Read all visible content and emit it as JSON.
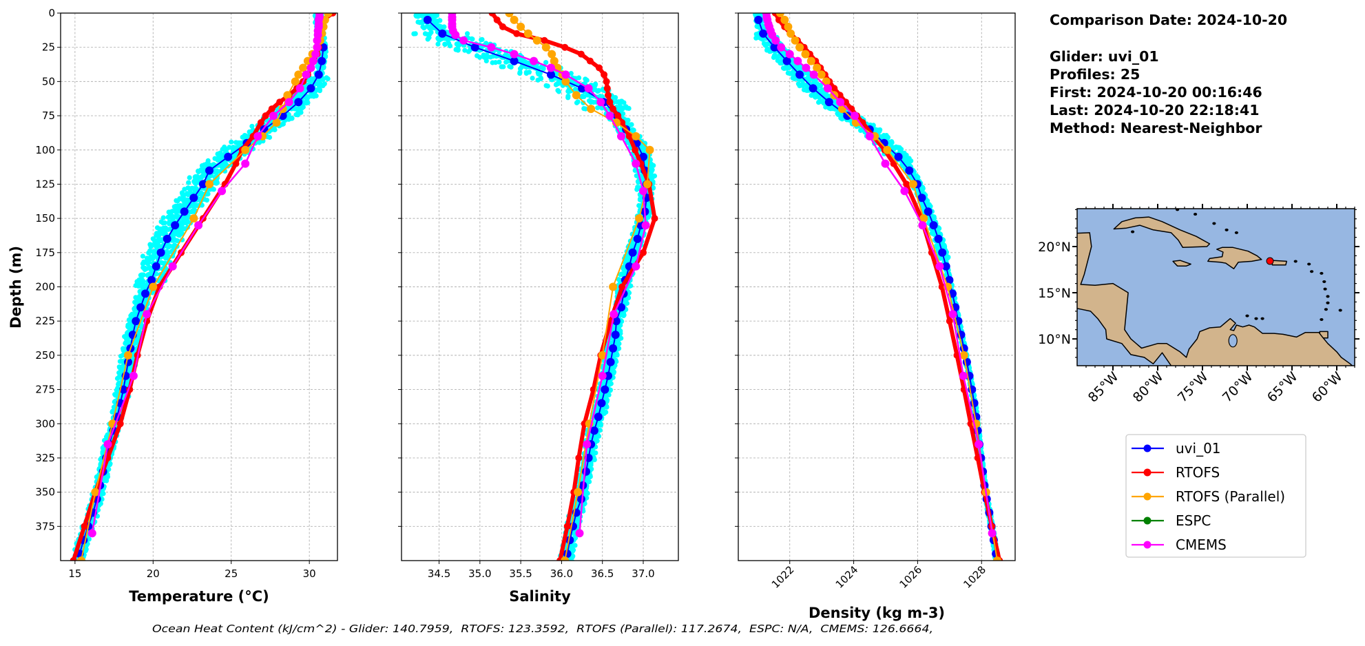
{
  "info": {
    "comparison_date": "Comparison Date: 2024-10-20",
    "glider": "Glider: uvi_01",
    "profiles": "Profiles: 25",
    "first": "First: 2024-10-20 00:16:46",
    "last": "Last: 2024-10-20 22:18:41",
    "method": "Method: Nearest-Neighbor"
  },
  "footer": "Ocean Heat Content (kJ/cm^2) - Glider: 140.7959,  RTOFS: 123.3592,  RTOFS (Parallel): 117.2674,  ESPC: N/A,  CMEMS: 126.6664,",
  "legend": {
    "placement": "bottom-right",
    "items": [
      {
        "label": "uvi_01",
        "color": "#0000ff"
      },
      {
        "label": "RTOFS",
        "color": "#ff0000"
      },
      {
        "label": "RTOFS (Parallel)",
        "color": "#ffa500"
      },
      {
        "label": "ESPC",
        "color": "#008000"
      },
      {
        "label": "CMEMS",
        "color": "#ff00ff"
      }
    ]
  },
  "raw_profiles_color": "#00ffff",
  "map": {
    "lon_range": [
      -89,
      -58
    ],
    "lat_range": [
      7.1,
      24.1
    ],
    "xticks": [
      -85,
      -80,
      -75,
      -70,
      -65,
      -60
    ],
    "xtick_labels": [
      "85°W",
      "80°W",
      "75°W",
      "70°W",
      "65°W",
      "60°W"
    ],
    "yticks": [
      10,
      15,
      20
    ],
    "ytick_labels": [
      "10°N",
      "15°N",
      "20°N"
    ],
    "glider_location": {
      "lon": -67.46,
      "lat": 18.43
    },
    "ocean_color": "#97b7e2",
    "land_color": "#d2b48c",
    "marker_color": "#ff0000"
  },
  "chart_data": [
    {
      "type": "line",
      "xlabel": "Temperature (°C)",
      "ylabel": "Depth (m)",
      "xlim": [
        14.08,
        31.8
      ],
      "ylim": [
        400,
        0
      ],
      "grid": true,
      "xticks": [
        15,
        20,
        25,
        30
      ],
      "xtick_labels": [
        "15",
        "20",
        "25",
        "30"
      ],
      "yticks": [
        0,
        25,
        50,
        75,
        100,
        125,
        150,
        175,
        200,
        225,
        250,
        275,
        300,
        325,
        350,
        375
      ],
      "ytick_labels": [
        "0",
        "25",
        "50",
        "75",
        "100",
        "125",
        "150",
        "175",
        "200",
        "225",
        "250",
        "275",
        "300",
        "325",
        "350",
        "375"
      ],
      "series": [
        {
          "name": "uvi_01",
          "color": "#0000ff",
          "depth": [
            5,
            15,
            25,
            35,
            45,
            55,
            65,
            75,
            85,
            95,
            105,
            115,
            125,
            135,
            145,
            155,
            165,
            175,
            185,
            195,
            205,
            215,
            225,
            235,
            245,
            255,
            265,
            275,
            285,
            295,
            305,
            315,
            325,
            335,
            345,
            355,
            365,
            375,
            385,
            395
          ],
          "values": [
            30.6,
            30.7,
            30.9,
            30.8,
            30.6,
            30.1,
            29.3,
            28.3,
            27.1,
            26.0,
            24.8,
            23.6,
            23.2,
            22.6,
            22.0,
            21.4,
            20.9,
            20.5,
            20.2,
            19.9,
            19.5,
            19.2,
            18.9,
            18.7,
            18.55,
            18.4,
            18.25,
            18.1,
            17.9,
            17.7,
            17.45,
            17.2,
            17.0,
            16.8,
            16.6,
            16.4,
            16.15,
            15.85,
            15.55,
            15.3
          ]
        },
        {
          "name": "RTOFS",
          "color": "#ff0000",
          "depth": [
            0,
            5,
            10,
            15,
            20,
            25,
            30,
            35,
            40,
            45,
            50,
            55,
            60,
            65,
            70,
            75,
            80,
            90,
            100,
            110,
            125,
            150,
            175,
            200,
            225,
            250,
            275,
            300,
            325,
            350,
            375,
            400
          ],
          "values": [
            31.5,
            30.9,
            30.8,
            30.75,
            30.7,
            30.6,
            30.5,
            30.3,
            30.1,
            29.9,
            29.6,
            29.2,
            28.7,
            28.1,
            27.6,
            27.2,
            26.9,
            26.4,
            25.7,
            25.3,
            24.6,
            23.2,
            21.8,
            20.4,
            19.6,
            19.0,
            18.5,
            17.9,
            17.1,
            16.3,
            15.6,
            14.9
          ]
        },
        {
          "name": "RTOFS (Parallel)",
          "color": "#ffa500",
          "depth": [
            0,
            5,
            10,
            15,
            20,
            25,
            30,
            35,
            40,
            45,
            50,
            60,
            70,
            80,
            90,
            100,
            125,
            150,
            200,
            250,
            300,
            350,
            400
          ],
          "values": [
            31.2,
            31.0,
            30.9,
            30.8,
            30.7,
            30.5,
            30.2,
            29.9,
            29.6,
            29.3,
            29.1,
            28.6,
            28.3,
            27.9,
            27.0,
            25.9,
            23.6,
            22.6,
            20.0,
            18.4,
            17.4,
            16.3,
            15.4
          ]
        },
        {
          "name": "CMEMS",
          "color": "#ff00ff",
          "depth": [
            0,
            3,
            5,
            8,
            10,
            13,
            16,
            20,
            25,
            30,
            35,
            40,
            45,
            55,
            65,
            75,
            90,
            110,
            130,
            155,
            185,
            220,
            265,
            315,
            380
          ],
          "values": [
            30.65,
            30.65,
            30.6,
            30.6,
            30.6,
            30.55,
            30.55,
            30.5,
            30.5,
            30.4,
            30.25,
            30.1,
            29.8,
            29.4,
            28.7,
            27.7,
            26.7,
            25.9,
            24.4,
            22.9,
            21.25,
            19.6,
            18.75,
            17.1,
            16.1
          ]
        }
      ]
    },
    {
      "type": "line",
      "xlabel": "Salinity",
      "xlim": [
        34.04,
        37.43
      ],
      "ylim": [
        400,
        0
      ],
      "grid": true,
      "xticks": [
        34.5,
        35.0,
        35.5,
        36.0,
        36.5,
        37.0
      ],
      "xtick_labels": [
        "34.5",
        "35.0",
        "35.5",
        "36.0",
        "36.5",
        "37.0"
      ],
      "yticks": [
        0,
        25,
        50,
        75,
        100,
        125,
        150,
        175,
        200,
        225,
        250,
        275,
        300,
        325,
        350,
        375
      ],
      "series": [
        {
          "name": "uvi_01",
          "color": "#0000ff",
          "depth": [
            5,
            15,
            25,
            35,
            45,
            55,
            65,
            75,
            85,
            95,
            105,
            115,
            125,
            135,
            145,
            155,
            165,
            175,
            185,
            195,
            205,
            215,
            225,
            235,
            245,
            255,
            265,
            275,
            285,
            295,
            305,
            315,
            325,
            335,
            345,
            355,
            365,
            375,
            385,
            395
          ],
          "values": [
            34.36,
            34.54,
            34.94,
            35.42,
            35.87,
            36.25,
            36.52,
            36.68,
            36.79,
            36.92,
            37.0,
            37.02,
            37.04,
            37.04,
            37.02,
            36.97,
            36.93,
            36.87,
            36.83,
            36.78,
            36.76,
            36.73,
            36.67,
            36.66,
            36.63,
            36.6,
            36.57,
            36.53,
            36.49,
            36.45,
            36.4,
            36.36,
            36.33,
            36.3,
            36.26,
            36.24,
            36.18,
            36.14,
            36.1,
            36.07
          ]
        },
        {
          "name": "RTOFS",
          "color": "#ff0000",
          "depth": [
            0,
            5,
            10,
            15,
            20,
            25,
            30,
            35,
            40,
            45,
            50,
            55,
            60,
            65,
            70,
            75,
            80,
            90,
            100,
            110,
            125,
            150,
            175,
            200,
            225,
            250,
            275,
            300,
            325,
            350,
            375,
            400
          ],
          "values": [
            35.15,
            35.21,
            35.28,
            35.45,
            35.79,
            36.04,
            36.24,
            36.35,
            36.46,
            36.52,
            36.55,
            36.56,
            36.57,
            36.59,
            36.63,
            36.69,
            36.74,
            36.83,
            36.9,
            36.97,
            37.07,
            37.14,
            37.0,
            36.74,
            36.6,
            36.48,
            36.39,
            36.28,
            36.21,
            36.15,
            36.07,
            35.98
          ]
        },
        {
          "name": "RTOFS (Parallel)",
          "color": "#ffa500",
          "depth": [
            0,
            5,
            10,
            15,
            20,
            25,
            30,
            35,
            40,
            45,
            50,
            60,
            70,
            80,
            90,
            100,
            125,
            150,
            200,
            250,
            300,
            350,
            400
          ],
          "values": [
            35.36,
            35.42,
            35.5,
            35.59,
            35.7,
            35.81,
            35.88,
            35.91,
            35.95,
            36.01,
            36.05,
            36.18,
            36.36,
            36.67,
            36.91,
            37.08,
            37.05,
            36.95,
            36.63,
            36.5,
            36.34,
            36.2,
            36.04
          ]
        },
        {
          "name": "CMEMS",
          "color": "#ff00ff",
          "depth": [
            0,
            3,
            5,
            8,
            10,
            13,
            16,
            20,
            25,
            30,
            35,
            40,
            45,
            55,
            65,
            75,
            90,
            110,
            130,
            155,
            185,
            220,
            265,
            315,
            380
          ],
          "values": [
            34.66,
            34.66,
            34.66,
            34.66,
            34.66,
            34.67,
            34.7,
            34.8,
            35.14,
            35.42,
            35.66,
            35.87,
            36.05,
            36.33,
            36.48,
            36.59,
            36.73,
            36.91,
            37.0,
            37.03,
            36.91,
            36.64,
            36.5,
            36.31,
            36.22
          ]
        }
      ]
    },
    {
      "type": "line",
      "xlabel": "Density (kg m-3)",
      "xlim": [
        1020.39,
        1029.05
      ],
      "ylim": [
        400,
        0
      ],
      "grid": true,
      "xticks": [
        1022,
        1024,
        1026,
        1028
      ],
      "xtick_labels": [
        "1022",
        "1024",
        "1026",
        "1028"
      ],
      "yticks": [
        0,
        25,
        50,
        75,
        100,
        125,
        150,
        175,
        200,
        225,
        250,
        275,
        300,
        325,
        350,
        375
      ],
      "series": [
        {
          "name": "uvi_01",
          "color": "#0000ff",
          "depth": [
            5,
            15,
            25,
            35,
            45,
            55,
            65,
            75,
            85,
            95,
            105,
            115,
            125,
            135,
            145,
            155,
            165,
            175,
            185,
            195,
            205,
            215,
            225,
            235,
            245,
            255,
            265,
            275,
            285,
            295,
            305,
            315,
            325,
            335,
            345,
            355,
            365,
            375,
            385,
            395
          ],
          "values": [
            1021.02,
            1021.17,
            1021.52,
            1021.91,
            1022.31,
            1022.73,
            1023.23,
            1023.8,
            1024.5,
            1024.95,
            1025.4,
            1025.74,
            1025.99,
            1026.13,
            1026.33,
            1026.5,
            1026.65,
            1026.77,
            1026.89,
            1026.99,
            1027.09,
            1027.18,
            1027.27,
            1027.36,
            1027.45,
            1027.54,
            1027.62,
            1027.7,
            1027.77,
            1027.83,
            1027.88,
            1027.93,
            1027.98,
            1028.04,
            1028.09,
            1028.16,
            1028.24,
            1028.31,
            1028.38,
            1028.45
          ]
        },
        {
          "name": "RTOFS",
          "color": "#ff0000",
          "depth": [
            0,
            5,
            10,
            15,
            20,
            25,
            30,
            35,
            40,
            45,
            50,
            55,
            60,
            65,
            70,
            75,
            80,
            90,
            100,
            110,
            125,
            150,
            175,
            200,
            225,
            250,
            275,
            300,
            325,
            350,
            375,
            400
          ],
          "values": [
            1021.55,
            1021.66,
            1021.84,
            1022.02,
            1022.24,
            1022.45,
            1022.63,
            1022.81,
            1022.96,
            1023.1,
            1023.24,
            1023.39,
            1023.57,
            1023.75,
            1023.93,
            1024.1,
            1024.28,
            1024.61,
            1024.97,
            1025.25,
            1025.65,
            1026.12,
            1026.44,
            1026.76,
            1027.0,
            1027.23,
            1027.45,
            1027.66,
            1027.88,
            1028.09,
            1028.32,
            1028.56
          ]
        },
        {
          "name": "RTOFS (Parallel)",
          "color": "#ffa500",
          "depth": [
            0,
            5,
            10,
            15,
            20,
            25,
            30,
            35,
            40,
            45,
            50,
            60,
            70,
            80,
            90,
            100,
            125,
            150,
            200,
            250,
            300,
            350,
            400
          ],
          "values": [
            1021.7,
            1021.84,
            1021.95,
            1022.03,
            1022.17,
            1022.31,
            1022.49,
            1022.67,
            1022.85,
            1022.99,
            1023.14,
            1023.39,
            1023.64,
            1024.07,
            1024.66,
            1025.05,
            1025.86,
            1026.19,
            1026.94,
            1027.45,
            1027.83,
            1028.14,
            1028.49
          ]
        },
        {
          "name": "CMEMS",
          "color": "#ff00ff",
          "depth": [
            0,
            3,
            5,
            8,
            10,
            13,
            16,
            20,
            25,
            30,
            35,
            40,
            45,
            55,
            65,
            75,
            90,
            110,
            130,
            155,
            185,
            220,
            265,
            315,
            380
          ],
          "values": [
            1021.27,
            1021.28,
            1021.3,
            1021.33,
            1021.36,
            1021.4,
            1021.45,
            1021.56,
            1021.73,
            1022.0,
            1022.25,
            1022.51,
            1022.75,
            1023.19,
            1023.58,
            1024.03,
            1024.5,
            1024.99,
            1025.59,
            1026.15,
            1026.69,
            1027.1,
            1027.43,
            1027.91,
            1028.33
          ]
        }
      ]
    }
  ]
}
